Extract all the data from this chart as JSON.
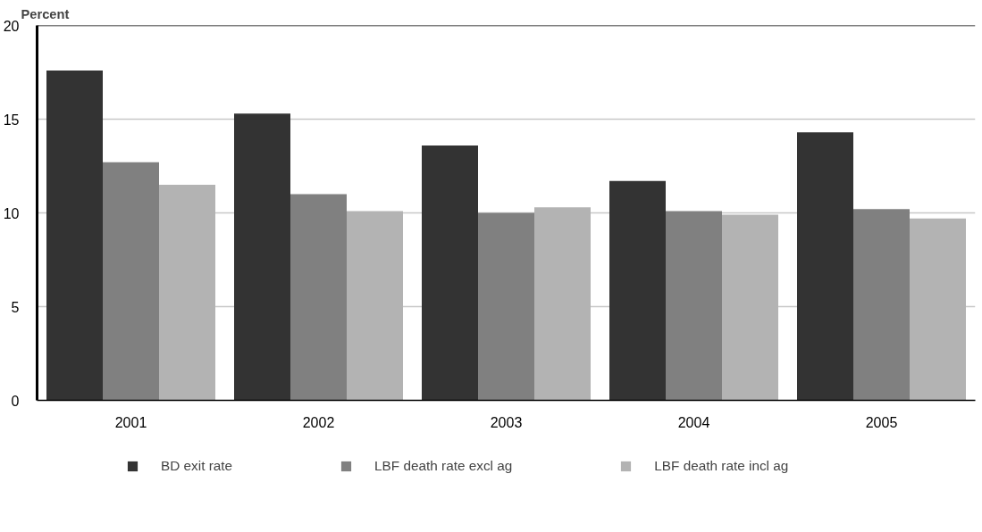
{
  "chart_data": {
    "type": "bar",
    "ylabel": "Percent",
    "categories": [
      "2001",
      "2002",
      "2003",
      "2004",
      "2005"
    ],
    "series": [
      {
        "name": "BD exit rate",
        "color": "#333333",
        "values": [
          17.6,
          15.3,
          13.6,
          11.7,
          14.3
        ]
      },
      {
        "name": "LBF death rate excl ag",
        "color": "#808080",
        "values": [
          12.7,
          11.0,
          10.0,
          10.1,
          10.2
        ]
      },
      {
        "name": "LBF death rate incl ag",
        "color": "#b3b3b3",
        "values": [
          11.5,
          10.1,
          10.3,
          9.9,
          9.7
        ]
      }
    ],
    "ylim": [
      0,
      20
    ],
    "yticks": [
      0,
      5,
      10,
      15,
      20
    ],
    "grid": "y",
    "legend": "bottom"
  }
}
